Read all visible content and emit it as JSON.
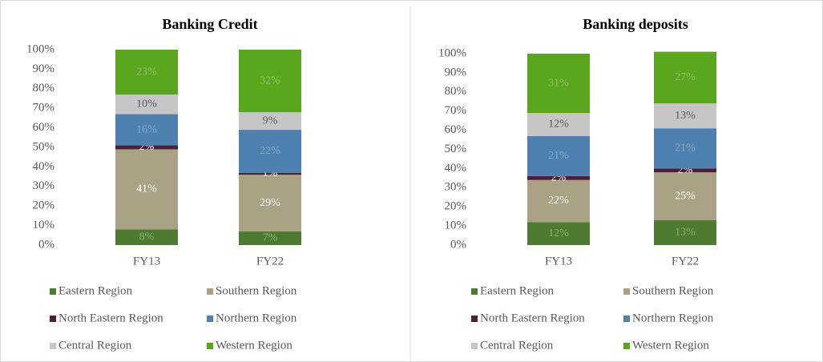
{
  "chart_data": [
    {
      "type": "stacked_bar",
      "title": "Banking Credit",
      "categories": [
        "FY13",
        "FY22"
      ],
      "ylim": [
        0,
        100
      ],
      "yticks": [
        {
          "value": 0,
          "label": "0%"
        },
        {
          "value": 10,
          "label": "10%"
        },
        {
          "value": 20,
          "label": "20%"
        },
        {
          "value": 30,
          "label": "30%"
        },
        {
          "value": 40,
          "label": "40%"
        },
        {
          "value": 50,
          "label": "50%"
        },
        {
          "value": 60,
          "label": "60%"
        },
        {
          "value": 70,
          "label": "70%"
        },
        {
          "value": 80,
          "label": "80%"
        },
        {
          "value": 90,
          "label": "90%"
        },
        {
          "value": 100,
          "label": "100%"
        }
      ],
      "series": [
        {
          "name": "Eastern Region",
          "color": "#4e7a31",
          "values": [
            8,
            7
          ],
          "value_labels": [
            "8%",
            "7%"
          ]
        },
        {
          "name": "Southern Region",
          "color": "#aaa285",
          "values": [
            41,
            29
          ],
          "value_labels": [
            "41%",
            "29%"
          ]
        },
        {
          "name": "North Eastern Region",
          "color": "#4a1f37",
          "values": [
            2,
            1
          ],
          "value_labels": [
            "2%",
            "1%"
          ]
        },
        {
          "name": "Northern Region",
          "color": "#4f81b0",
          "values": [
            16,
            22
          ],
          "value_labels": [
            "16%",
            "22%"
          ]
        },
        {
          "name": "Central Region",
          "color": "#c6c6c6",
          "values": [
            10,
            9
          ],
          "value_labels": [
            "10%",
            "9%"
          ]
        },
        {
          "name": "Western Region",
          "color": "#5aa61d",
          "values": [
            23,
            32
          ],
          "value_labels": [
            "23%",
            "32%"
          ]
        }
      ]
    },
    {
      "type": "stacked_bar",
      "title": "Banking deposits",
      "categories": [
        "FY13",
        "FY22"
      ],
      "ylim": [
        0,
        100
      ],
      "yticks": [
        {
          "value": 0,
          "label": "0%"
        },
        {
          "value": 10,
          "label": "10%"
        },
        {
          "value": 20,
          "label": "20%"
        },
        {
          "value": 30,
          "label": "30%"
        },
        {
          "value": 40,
          "label": "40%"
        },
        {
          "value": 50,
          "label": "50%"
        },
        {
          "value": 60,
          "label": "60%"
        },
        {
          "value": 70,
          "label": "70%"
        },
        {
          "value": 80,
          "label": "80%"
        },
        {
          "value": 90,
          "label": "90%"
        },
        {
          "value": 100,
          "label": "100%"
        }
      ],
      "series": [
        {
          "name": "Eastern Region",
          "color": "#4e7a31",
          "values": [
            12,
            13
          ],
          "value_labels": [
            "12%",
            "13%"
          ]
        },
        {
          "name": "Southern Region",
          "color": "#aaa285",
          "values": [
            22,
            25
          ],
          "value_labels": [
            "22%",
            "25%"
          ]
        },
        {
          "name": "North Eastern Region",
          "color": "#4a1f37",
          "values": [
            2,
            2
          ],
          "value_labels": [
            "2%",
            "2%"
          ]
        },
        {
          "name": "Northern Region",
          "color": "#4f81b0",
          "values": [
            21,
            21
          ],
          "value_labels": [
            "21%",
            "21%"
          ]
        },
        {
          "name": "Central Region",
          "color": "#c6c6c6",
          "values": [
            12,
            13
          ],
          "value_labels": [
            "12%",
            "13%"
          ]
        },
        {
          "name": "Western Region",
          "color": "#5aa61d",
          "values": [
            31,
            27
          ],
          "value_labels": [
            "31%",
            "27%"
          ]
        }
      ]
    }
  ]
}
